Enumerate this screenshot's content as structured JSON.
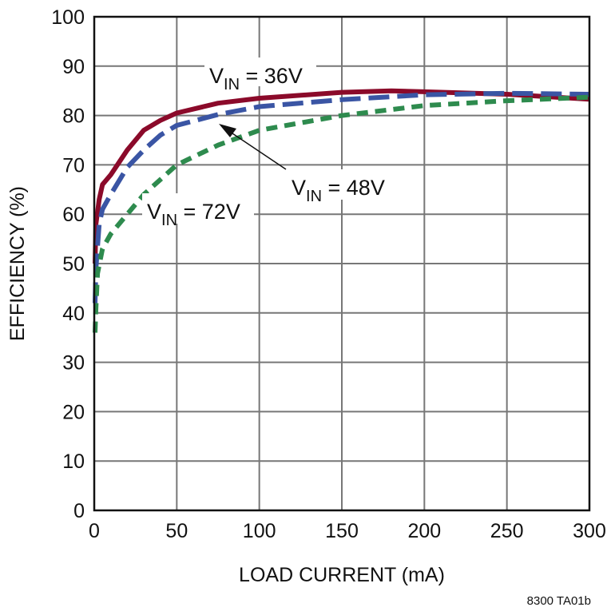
{
  "chart_data": {
    "type": "line",
    "title": "",
    "xlabel": "LOAD CURRENT (mA)",
    "ylabel": "EFFICIENCY (%)",
    "xlim": [
      0,
      300
    ],
    "ylim": [
      0,
      100
    ],
    "xticks": [
      "0",
      "50",
      "100",
      "150",
      "200",
      "250",
      "300"
    ],
    "yticks": [
      "0",
      "10",
      "20",
      "30",
      "40",
      "50",
      "60",
      "70",
      "80",
      "90",
      "100"
    ],
    "grid": true,
    "figure_id": "8300 TA01b",
    "series": [
      {
        "name": "VIN = 36V",
        "label_main": "V",
        "label_sub": "IN",
        "label_rest": " = 36V",
        "color": "#8b0a2a",
        "style": "solid",
        "x": [
          0.5,
          1,
          3,
          5,
          10,
          20,
          30,
          40,
          50,
          75,
          100,
          150,
          180,
          200,
          250,
          300
        ],
        "y": [
          50,
          58,
          63,
          66,
          68,
          73,
          77,
          79,
          80.5,
          82.5,
          83.5,
          84.7,
          85,
          84.8,
          84.3,
          83.3
        ]
      },
      {
        "name": "VIN = 48V",
        "label_main": "V",
        "label_sub": "IN",
        "label_rest": " = 48V",
        "color": "#3a55a4",
        "style": "long-dash",
        "x": [
          0.5,
          1,
          3,
          5,
          10,
          20,
          30,
          40,
          50,
          75,
          100,
          150,
          200,
          250,
          300
        ],
        "y": [
          42,
          49,
          58,
          61,
          64,
          69.5,
          73,
          76,
          78,
          80.2,
          81.8,
          83.2,
          84.2,
          84.5,
          84.3
        ]
      },
      {
        "name": "VIN = 72V",
        "label_main": "V",
        "label_sub": "IN",
        "label_rest": " = 72V",
        "color": "#2e8b4e",
        "style": "short-dash",
        "x": [
          0.5,
          1,
          2,
          5,
          10,
          20,
          30,
          50,
          75,
          100,
          150,
          200,
          250,
          300
        ],
        "y": [
          36,
          41,
          48,
          53,
          56,
          60,
          64,
          70,
          74,
          77,
          80,
          82,
          83,
          83.7
        ]
      }
    ]
  }
}
